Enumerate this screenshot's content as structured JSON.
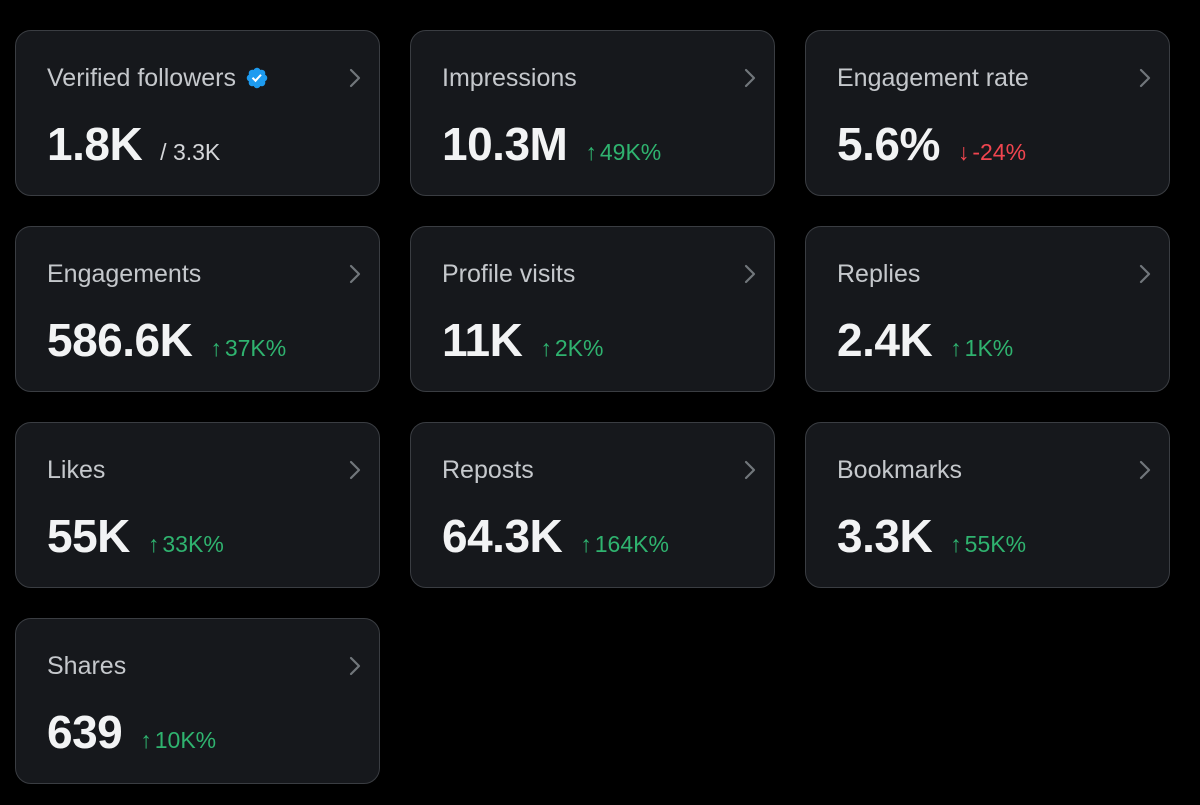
{
  "colors": {
    "background": "#000000",
    "card_background": "#16181c",
    "card_border": "#3a3d42",
    "positive": "#2fb36f",
    "negative": "#f0454f",
    "verified_badge": "#1d9bf0"
  },
  "metrics": [
    {
      "title": "Verified followers",
      "icon": "verified-badge-icon",
      "value": "1.8K",
      "sub": "/ 3.3K"
    },
    {
      "title": "Impressions",
      "value": "10.3M",
      "change": "49K%",
      "direction": "up",
      "arrow": "↑"
    },
    {
      "title": "Engagement rate",
      "value": "5.6%",
      "change": "-24%",
      "direction": "down",
      "arrow": "↓"
    },
    {
      "title": "Engagements",
      "value": "586.6K",
      "change": "37K%",
      "direction": "up",
      "arrow": "↑"
    },
    {
      "title": "Profile visits",
      "value": "11K",
      "change": "2K%",
      "direction": "up",
      "arrow": "↑"
    },
    {
      "title": "Replies",
      "value": "2.4K",
      "change": "1K%",
      "direction": "up",
      "arrow": "↑"
    },
    {
      "title": "Likes",
      "value": "55K",
      "change": "33K%",
      "direction": "up",
      "arrow": "↑"
    },
    {
      "title": "Reposts",
      "value": "64.3K",
      "change": "164K%",
      "direction": "up",
      "arrow": "↑"
    },
    {
      "title": "Bookmarks",
      "value": "3.3K",
      "change": "55K%",
      "direction": "up",
      "arrow": "↑"
    },
    {
      "title": "Shares",
      "value": "639",
      "change": "10K%",
      "direction": "up",
      "arrow": "↑"
    }
  ]
}
